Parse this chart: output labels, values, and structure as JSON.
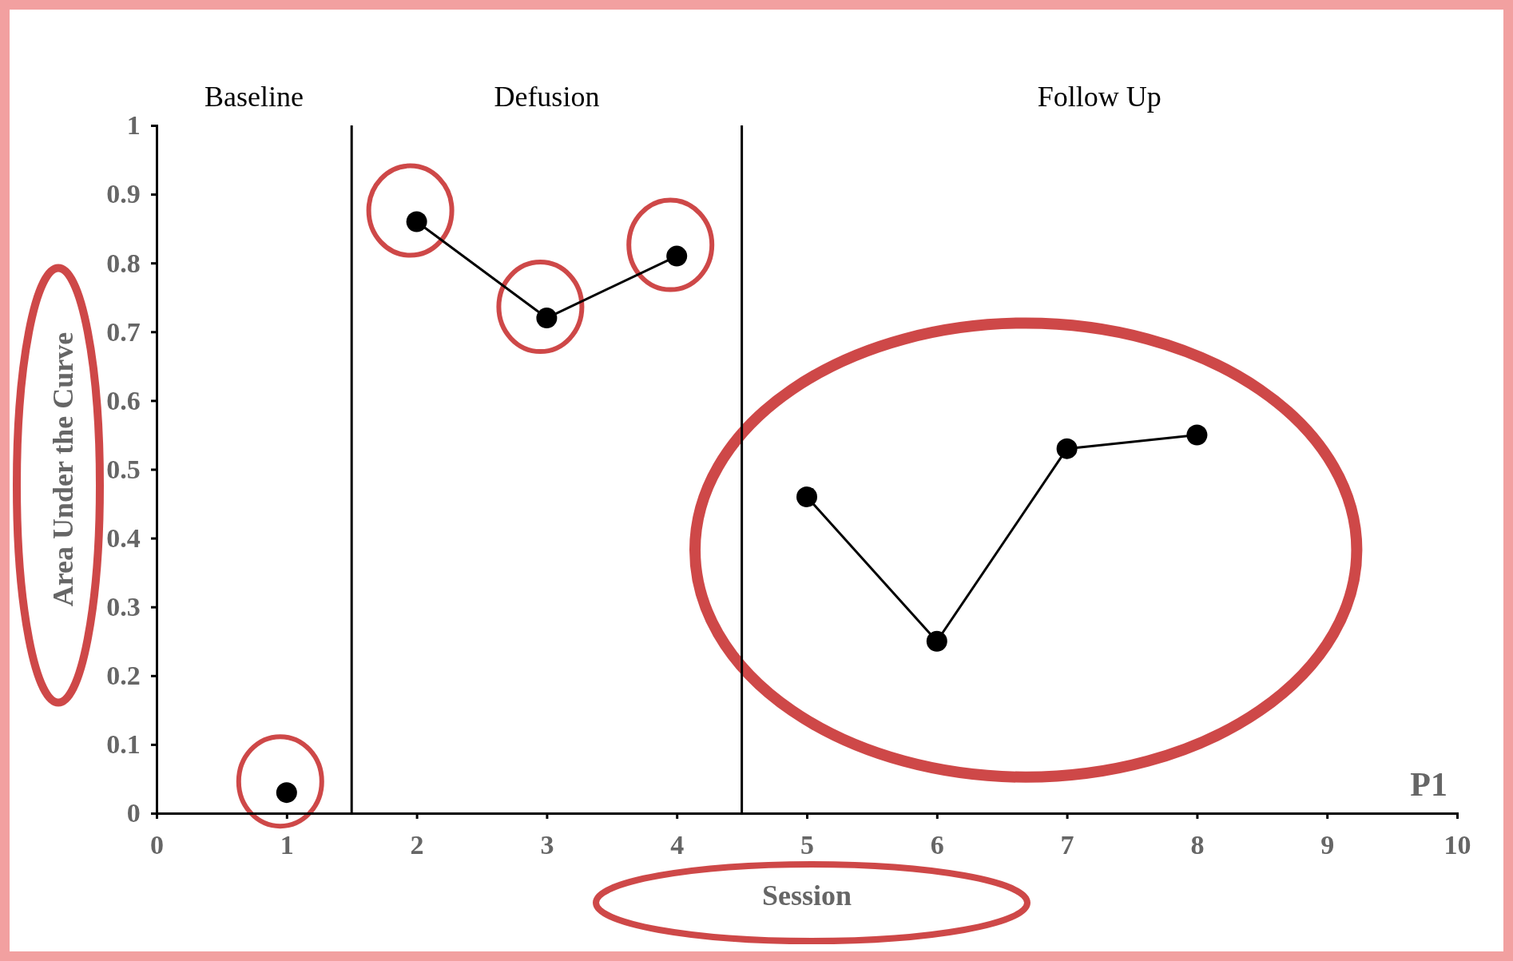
{
  "chart_data": {
    "type": "line",
    "xlabel": "Session",
    "ylabel": "Area Under the Curve",
    "xlim": [
      0,
      10
    ],
    "xticks": [
      0,
      1,
      2,
      3,
      4,
      5,
      6,
      7,
      8,
      9,
      10
    ],
    "ylim": [
      0,
      1
    ],
    "yticks": [
      0,
      0.1,
      0.2,
      0.3,
      0.4,
      0.5,
      0.6,
      0.7,
      0.8,
      0.9,
      1
    ],
    "series": [
      {
        "color": "#000000",
        "x": [
          1,
          1.5,
          2,
          3,
          4,
          4.5,
          5,
          6,
          7,
          8
        ],
        "values": [
          0.03,
          null,
          0.86,
          0.72,
          0.81,
          null,
          0.46,
          0.25,
          0.53,
          0.55
        ]
      }
    ],
    "marker": "circle",
    "line_style": "solid",
    "grid": false,
    "ref_lines": [
      {
        "axis": "x",
        "value": 1.5,
        "color": "#000000"
      },
      {
        "axis": "x",
        "value": 4.5,
        "color": "#000000"
      }
    ],
    "annotations": [
      "Baseline",
      "Defusion",
      "Follow Up",
      "P1"
    ]
  }
}
